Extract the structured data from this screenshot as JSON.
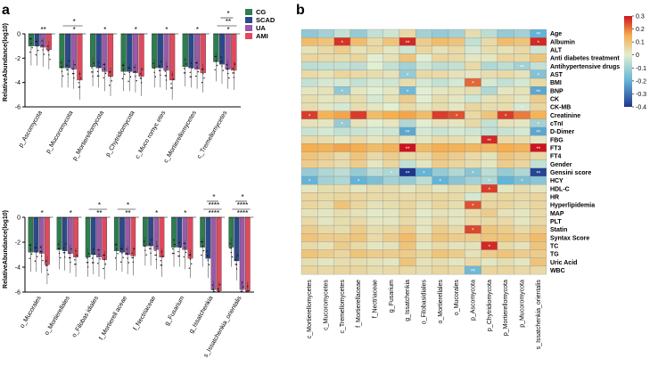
{
  "figure": {
    "panel_a_label": "a",
    "panel_b_label": "b",
    "colors": {
      "CG": "#2e7d4f",
      "SCAD": "#2b4a8c",
      "UA": "#9a5aa8",
      "AMI": "#e04a5e"
    }
  },
  "chart_data": [
    {
      "type": "bar",
      "panel": "a-top",
      "ylabel": "RelativeAbundance(log10)",
      "ylim": [
        -6,
        0
      ],
      "yticks": [
        "0",
        "-2",
        "-4",
        "-6"
      ],
      "legend": {
        "position": "top-right",
        "entries": [
          "CG",
          "SCAD",
          "UA",
          "AMI"
        ]
      },
      "categories": [
        "p_Ascomycota",
        "p_Mucoromycota",
        "p_Mortierellomycota",
        "p_Chytridiomycota",
        "c_Muco romyc etes",
        "c_Mortierellomycetes",
        "c_Tremellomycetes"
      ],
      "series": [
        {
          "name": "CG",
          "values": [
            -1.0,
            -2.8,
            -2.7,
            -3.1,
            -2.8,
            -2.7,
            -2.3
          ]
        },
        {
          "name": "SCAD",
          "values": [
            -1.0,
            -2.8,
            -2.8,
            -3.1,
            -2.8,
            -2.8,
            -2.5
          ]
        },
        {
          "name": "UA",
          "values": [
            -1.1,
            -2.9,
            -3.1,
            -3.2,
            -3.0,
            -2.9,
            -2.9
          ]
        },
        {
          "name": "AMI",
          "values": [
            -1.3,
            -3.8,
            -3.5,
            -3.5,
            -3.8,
            -3.2,
            -3.0
          ]
        }
      ],
      "significance": [
        {
          "category": 0,
          "labels": [
            "**"
          ]
        },
        {
          "category": 1,
          "labels": [
            "*",
            "*"
          ]
        },
        {
          "category": 2,
          "labels": [
            "*"
          ]
        },
        {
          "category": 3,
          "labels": [
            "*"
          ]
        },
        {
          "category": 4,
          "labels": [
            "*"
          ]
        },
        {
          "category": 5,
          "labels": [
            "*"
          ]
        },
        {
          "category": 6,
          "labels": [
            "*",
            "**",
            "*"
          ]
        }
      ]
    },
    {
      "type": "bar",
      "panel": "a-bottom",
      "ylabel": "RelativeAbundance(log10)",
      "ylim": [
        -6,
        0
      ],
      "yticks": [
        "0",
        "-2",
        "-4",
        "-6"
      ],
      "categories": [
        "o_Mucorales",
        "o_Mortierellales",
        "o_Filobas idiales",
        "f_Mortierell aceae",
        "f_Nectriaceae",
        "g_Fusarium",
        "g_Issatchenkia",
        "s_Issatchenkia_orientalis"
      ],
      "series": [
        {
          "name": "CG",
          "values": [
            -2.8,
            -2.6,
            -3.2,
            -2.7,
            -2.3,
            -2.4,
            -2.4,
            -2.4
          ]
        },
        {
          "name": "SCAD",
          "values": [
            -2.8,
            -2.7,
            -3.0,
            -2.8,
            -2.3,
            -2.4,
            -3.3,
            -3.5
          ]
        },
        {
          "name": "UA",
          "values": [
            -2.9,
            -2.9,
            -3.2,
            -3.0,
            -2.6,
            -2.6,
            -5.8,
            -5.8
          ]
        },
        {
          "name": "AMI",
          "values": [
            -3.8,
            -3.2,
            -3.4,
            -3.1,
            -3.2,
            -3.3,
            -5.9,
            -5.9
          ]
        }
      ],
      "significance": [
        {
          "category": 0,
          "labels": [
            "*"
          ]
        },
        {
          "category": 1,
          "labels": [
            "*"
          ]
        },
        {
          "category": 2,
          "labels": [
            "**",
            "*"
          ]
        },
        {
          "category": 3,
          "labels": [
            "**",
            "*"
          ]
        },
        {
          "category": 4,
          "labels": [
            "*"
          ]
        },
        {
          "category": 5,
          "labels": [
            "*"
          ]
        },
        {
          "category": 6,
          "labels": [
            "****",
            "****",
            "*"
          ]
        },
        {
          "category": 7,
          "labels": [
            "****",
            "****",
            "*"
          ]
        }
      ]
    },
    {
      "type": "heatmap",
      "panel": "b",
      "rows": [
        "Age",
        "Albumin",
        "ALT",
        "Anti diabetes treatment",
        "Antihypertensive drugs",
        "AST",
        "BMI",
        "BNP",
        "CK",
        "CK-MB",
        "Creatinine",
        "cTnI",
        "D-Dimer",
        "FBG",
        "FT3",
        "FT4",
        "Gender",
        "Gensini score",
        "HCY",
        "HDL-C",
        "HR",
        "Hyperlipidemia",
        "MAP",
        "PLT",
        "Statin",
        "Syntax Score",
        "TC",
        "TG",
        "Uric Acid",
        "WBC"
      ],
      "columns": [
        "c_Mortierellomycetes",
        "c_Mucoromycetes",
        "c_Tremellomycetes",
        "f_Mortierellaceae",
        "f_Nectriaceae",
        "g_Fusarium",
        "g_Issatchenkia",
        "o_Filobasidiales",
        "o_Mortierellales",
        "o_Mucorales",
        "p_Ascomycota",
        "p_Chytridiomycota",
        "p_Mortierellomycota",
        "p_Mucoromycota",
        "s_Issatchenkia_orientalis"
      ],
      "colorbar": {
        "min": -0.4,
        "max": 0.3,
        "ticks": [
          "0.3",
          "0.2",
          "0.1",
          "0",
          "-0.1",
          "-0.2",
          "-0.3",
          "-0.4"
        ]
      },
      "values": [
        [
          -0.13,
          -0.1,
          -0.05,
          -0.12,
          -0.05,
          -0.03,
          0.05,
          -0.1,
          -0.12,
          -0.1,
          0.04,
          -0.06,
          -0.12,
          -0.1,
          -0.2
        ],
        [
          0.12,
          0.1,
          0.27,
          0.12,
          0.05,
          0.1,
          0.28,
          0.08,
          0.12,
          0.1,
          -0.05,
          0.05,
          0.12,
          0.1,
          0.28
        ],
        [
          0.03,
          0.05,
          0.08,
          0.03,
          0.05,
          0.02,
          -0.03,
          0.06,
          0.03,
          0.05,
          -0.02,
          0.04,
          0.03,
          0.05,
          -0.03
        ],
        [
          0.06,
          0.05,
          0.04,
          0.06,
          0.0,
          0.03,
          0.1,
          0.0,
          0.06,
          0.05,
          0.02,
          0.02,
          0.06,
          0.05,
          0.1
        ],
        [
          -0.06,
          -0.05,
          -0.05,
          -0.06,
          0.0,
          -0.05,
          -0.1,
          -0.03,
          -0.06,
          -0.05,
          0.05,
          -0.08,
          -0.06,
          -0.1,
          -0.05
        ],
        [
          0.05,
          0.03,
          0.06,
          0.05,
          0.04,
          0.03,
          -0.12,
          0.05,
          0.05,
          0.03,
          0.02,
          0.04,
          0.05,
          0.03,
          -0.15
        ],
        [
          -0.05,
          -0.02,
          -0.02,
          -0.05,
          -0.02,
          -0.03,
          0.04,
          -0.02,
          -0.05,
          -0.02,
          0.22,
          -0.02,
          -0.05,
          -0.02,
          0.05
        ],
        [
          0.02,
          0.03,
          -0.13,
          0.02,
          0.0,
          0.02,
          -0.18,
          0.0,
          0.02,
          0.03,
          0.04,
          -0.08,
          0.02,
          0.03,
          -0.22
        ],
        [
          0.04,
          0.02,
          0.03,
          0.04,
          -0.02,
          0.03,
          0.08,
          0.0,
          0.04,
          0.02,
          -0.03,
          0.03,
          0.04,
          0.02,
          0.08
        ],
        [
          0.04,
          0.02,
          -0.02,
          0.04,
          0.02,
          0.0,
          0.05,
          0.02,
          0.04,
          0.02,
          0.06,
          0.04,
          0.04,
          -0.02,
          0.06
        ],
        [
          0.26,
          0.14,
          0.16,
          0.26,
          0.12,
          0.15,
          0.16,
          0.12,
          0.26,
          0.24,
          0.05,
          0.1,
          0.26,
          0.2,
          0.14
        ],
        [
          0.03,
          0.02,
          -0.12,
          0.03,
          0.0,
          0.02,
          -0.08,
          0.0,
          0.03,
          0.02,
          0.05,
          -0.05,
          0.03,
          0.02,
          -0.1
        ],
        [
          -0.04,
          -0.02,
          -0.05,
          -0.04,
          -0.02,
          -0.03,
          -0.22,
          -0.02,
          -0.04,
          -0.02,
          -0.03,
          -0.05,
          -0.04,
          -0.02,
          -0.22
        ],
        [
          0.05,
          0.04,
          0.02,
          0.05,
          0.02,
          0.04,
          0.02,
          0.02,
          0.05,
          0.04,
          0.02,
          0.28,
          0.05,
          0.04,
          0.02
        ],
        [
          0.15,
          0.14,
          0.16,
          0.15,
          0.12,
          0.14,
          0.3,
          0.12,
          0.15,
          0.14,
          0.13,
          0.13,
          0.15,
          0.14,
          0.3
        ],
        [
          0.1,
          0.08,
          0.05,
          0.1,
          0.05,
          0.08,
          0.05,
          0.05,
          0.1,
          0.08,
          0.05,
          0.03,
          0.1,
          0.08,
          0.05
        ],
        [
          0.08,
          0.06,
          0.04,
          0.08,
          0.02,
          0.06,
          -0.05,
          0.02,
          0.08,
          0.06,
          0.04,
          0.02,
          0.08,
          0.06,
          -0.05
        ],
        [
          -0.12,
          -0.08,
          -0.06,
          -0.12,
          -0.06,
          -0.08,
          -0.4,
          -0.2,
          -0.12,
          -0.08,
          -0.14,
          -0.06,
          -0.12,
          -0.08,
          -0.38
        ],
        [
          -0.2,
          -0.1,
          -0.08,
          -0.2,
          -0.16,
          -0.1,
          -0.12,
          -0.06,
          -0.2,
          -0.14,
          -0.1,
          -0.08,
          -0.2,
          -0.16,
          -0.14
        ],
        [
          0.02,
          0.04,
          0.04,
          0.02,
          0.04,
          0.04,
          0.02,
          0.04,
          0.02,
          0.04,
          0.04,
          0.26,
          0.02,
          0.04,
          0.02
        ],
        [
          0.06,
          0.05,
          0.06,
          0.06,
          0.05,
          0.05,
          0.05,
          0.05,
          0.06,
          0.05,
          -0.02,
          0.05,
          0.06,
          0.05,
          0.06
        ],
        [
          0.06,
          0.04,
          0.1,
          0.06,
          0.03,
          0.04,
          0.06,
          0.03,
          0.06,
          0.04,
          0.24,
          0.06,
          0.06,
          0.04,
          0.06
        ],
        [
          0.03,
          0.02,
          0.04,
          0.03,
          0.01,
          0.02,
          0.05,
          0.01,
          0.03,
          0.02,
          0.05,
          0.08,
          0.03,
          0.02,
          0.05
        ],
        [
          0.05,
          0.02,
          0.04,
          0.05,
          0.02,
          0.02,
          0.05,
          0.02,
          0.05,
          0.02,
          0.05,
          0.05,
          0.05,
          0.02,
          0.05
        ],
        [
          0.08,
          0.05,
          0.04,
          0.08,
          0.04,
          0.05,
          0.08,
          0.02,
          0.08,
          0.05,
          0.25,
          0.1,
          0.08,
          0.05,
          0.08
        ],
        [
          0.1,
          0.08,
          0.08,
          0.1,
          0.05,
          0.08,
          0.12,
          0.05,
          0.1,
          0.08,
          0.08,
          0.1,
          0.1,
          0.08,
          0.12
        ],
        [
          0.05,
          0.03,
          0.08,
          0.05,
          0.02,
          0.03,
          0.1,
          0.02,
          0.05,
          0.03,
          0.03,
          0.28,
          0.05,
          0.03,
          0.1
        ],
        [
          0.1,
          0.08,
          0.06,
          0.1,
          0.08,
          0.08,
          0.08,
          0.06,
          0.1,
          0.08,
          0.03,
          0.08,
          0.1,
          0.08,
          0.08
        ],
        [
          0.04,
          0.02,
          0.04,
          0.04,
          0.03,
          0.02,
          0.1,
          0.03,
          0.04,
          0.02,
          0.05,
          0.02,
          0.04,
          0.02,
          0.1
        ],
        [
          0.06,
          0.05,
          0.06,
          0.06,
          0.04,
          0.05,
          0.05,
          0.04,
          0.06,
          0.05,
          -0.18,
          0.06,
          0.06,
          0.05,
          0.05
        ]
      ],
      "annotations": [
        {
          "row": 0,
          "col": 14,
          "label": "**"
        },
        {
          "row": 1,
          "col": 2,
          "label": "*"
        },
        {
          "row": 1,
          "col": 6,
          "label": "**"
        },
        {
          "row": 1,
          "col": 14,
          "label": "*"
        },
        {
          "row": 4,
          "col": 13,
          "label": "**"
        },
        {
          "row": 5,
          "col": 6,
          "label": "*"
        },
        {
          "row": 5,
          "col": 14,
          "label": "*"
        },
        {
          "row": 6,
          "col": 10,
          "label": "*"
        },
        {
          "row": 7,
          "col": 2,
          "label": "*"
        },
        {
          "row": 7,
          "col": 6,
          "label": "*"
        },
        {
          "row": 7,
          "col": 14,
          "label": "**"
        },
        {
          "row": 9,
          "col": 13,
          "label": "*"
        },
        {
          "row": 10,
          "col": 0,
          "label": "*"
        },
        {
          "row": 10,
          "col": 9,
          "label": "*"
        },
        {
          "row": 10,
          "col": 12,
          "label": "*"
        },
        {
          "row": 11,
          "col": 2,
          "label": "*"
        },
        {
          "row": 11,
          "col": 14,
          "label": "*"
        },
        {
          "row": 12,
          "col": 6,
          "label": "**"
        },
        {
          "row": 12,
          "col": 14,
          "label": "**"
        },
        {
          "row": 13,
          "col": 11,
          "label": "**"
        },
        {
          "row": 14,
          "col": 6,
          "label": "**"
        },
        {
          "row": 14,
          "col": 14,
          "label": "**"
        },
        {
          "row": 17,
          "col": 5,
          "label": "*"
        },
        {
          "row": 17,
          "col": 6,
          "label": "**"
        },
        {
          "row": 17,
          "col": 7,
          "label": "*"
        },
        {
          "row": 17,
          "col": 10,
          "label": "*"
        },
        {
          "row": 17,
          "col": 14,
          "label": "**"
        },
        {
          "row": 18,
          "col": 0,
          "label": "*"
        },
        {
          "row": 18,
          "col": 3,
          "label": "*"
        },
        {
          "row": 18,
          "col": 8,
          "label": "*"
        },
        {
          "row": 18,
          "col": 11,
          "label": "*"
        },
        {
          "row": 18,
          "col": 13,
          "label": "*"
        },
        {
          "row": 19,
          "col": 11,
          "label": "*"
        },
        {
          "row": 21,
          "col": 10,
          "label": "*"
        },
        {
          "row": 24,
          "col": 10,
          "label": "*"
        },
        {
          "row": 26,
          "col": 11,
          "label": "*"
        },
        {
          "row": 29,
          "col": 10,
          "label": "**"
        }
      ]
    }
  ]
}
